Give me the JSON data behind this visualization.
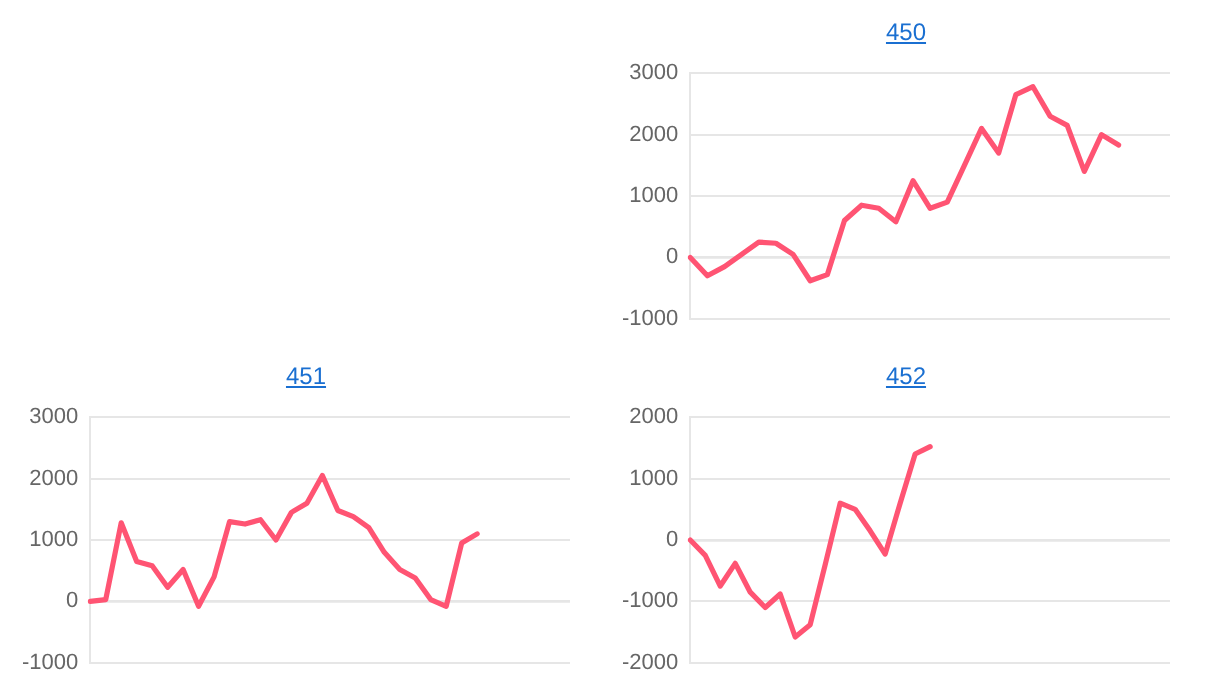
{
  "chart_data": [
    {
      "type": "line",
      "title": "450",
      "categories": [
        null,
        null,
        null,
        null,
        null,
        null,
        null,
        null,
        null,
        null,
        null,
        null,
        null,
        null,
        null,
        null,
        null,
        null,
        null,
        null,
        null,
        null,
        null,
        null,
        null,
        null,
        null,
        null,
        null
      ],
      "series": [
        {
          "color": "#ff5473",
          "values": [
            0,
            -300,
            -150,
            50,
            250,
            230,
            50,
            -380,
            -280,
            600,
            850,
            800,
            580,
            1250,
            800,
            900,
            1500,
            2100,
            1700,
            2650,
            2780,
            2300,
            2150,
            1400,
            2000,
            1830,
            null,
            null,
            null
          ]
        }
      ],
      "ylim": [
        -1000,
        3000
      ],
      "yticks": [
        -1000,
        0,
        1000,
        2000,
        3000
      ],
      "grid": "y",
      "tick_labels": "y",
      "marker": "none",
      "line_style": "solid",
      "legend": false
    },
    {
      "type": "line",
      "title": "451",
      "categories": [
        null,
        null,
        null,
        null,
        null,
        null,
        null,
        null,
        null,
        null,
        null,
        null,
        null,
        null,
        null,
        null,
        null,
        null,
        null,
        null,
        null,
        null,
        null,
        null,
        null,
        null,
        null,
        null,
        null,
        null,
        null,
        null
      ],
      "series": [
        {
          "color": "#ff5473",
          "values": [
            0,
            30,
            1280,
            650,
            580,
            230,
            520,
            -80,
            400,
            1300,
            1260,
            1330,
            1000,
            1450,
            1600,
            2050,
            1480,
            1380,
            1200,
            800,
            520,
            380,
            30,
            -80,
            950,
            1100,
            null,
            null,
            null,
            null,
            null,
            null
          ]
        }
      ],
      "ylim": [
        -1000,
        3000
      ],
      "yticks": [
        -1000,
        0,
        1000,
        2000,
        3000
      ],
      "grid": "y",
      "tick_labels": "y",
      "marker": "none",
      "line_style": "solid",
      "legend": false
    },
    {
      "type": "line",
      "title": "452",
      "categories": [
        null,
        null,
        null,
        null,
        null,
        null,
        null,
        null,
        null,
        null,
        null,
        null,
        null,
        null,
        null,
        null,
        null,
        null,
        null,
        null,
        null,
        null,
        null,
        null,
        null,
        null,
        null,
        null,
        null,
        null,
        null,
        null,
        null
      ],
      "series": [
        {
          "color": "#ff5473",
          "values": [
            0,
            -250,
            -750,
            -380,
            -850,
            -1100,
            -880,
            -1580,
            -1380,
            -400,
            600,
            500,
            150,
            -230,
            600,
            1400,
            1520,
            null,
            null,
            null,
            null,
            null,
            null,
            null,
            null,
            null,
            null,
            null,
            null,
            null,
            null,
            null,
            null
          ]
        }
      ],
      "ylim": [
        -2000,
        2000
      ],
      "yticks": [
        -2000,
        -1000,
        0,
        1000,
        2000
      ],
      "grid": "y",
      "tick_labels": "y",
      "marker": "none",
      "line_style": "solid",
      "legend": false
    }
  ]
}
